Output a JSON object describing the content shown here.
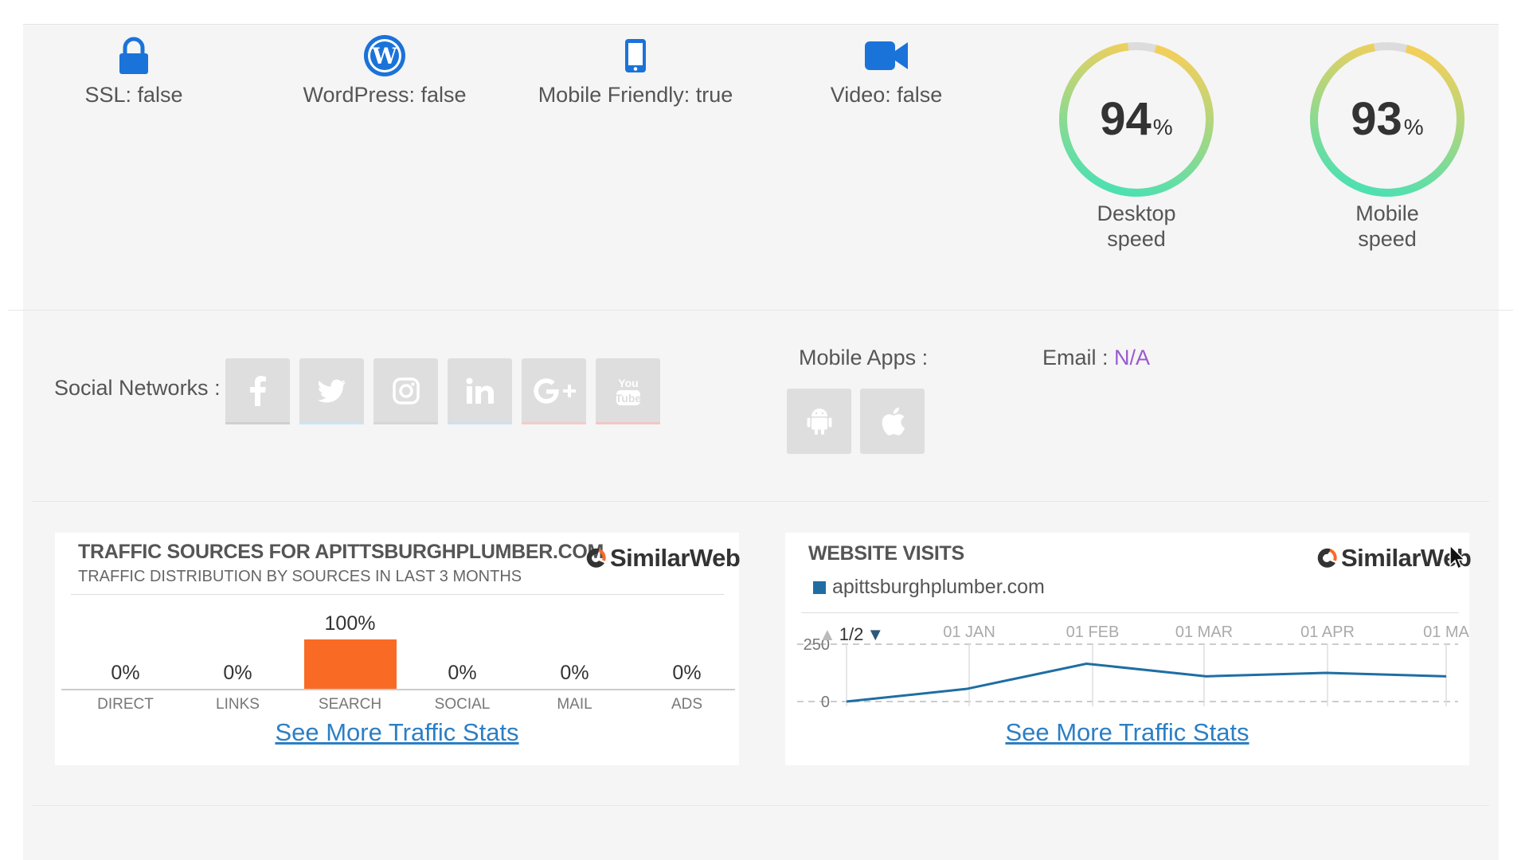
{
  "features": [
    {
      "icon": "lock-icon",
      "label": "SSL: false"
    },
    {
      "icon": "wordpress-icon",
      "label": "WordPress: false"
    },
    {
      "icon": "mobile-phone-icon",
      "label": "Mobile Friendly: true"
    },
    {
      "icon": "video-camera-icon",
      "label": "Video: false"
    }
  ],
  "speeds": [
    {
      "value": "94",
      "unit": "%",
      "caption_line1": "Desktop",
      "caption_line2": "speed",
      "fraction": 0.94
    },
    {
      "value": "93",
      "unit": "%",
      "caption_line1": "Mobile",
      "caption_line2": "speed",
      "fraction": 0.93
    }
  ],
  "social": {
    "label": "Social Networks :",
    "networks": [
      "facebook",
      "twitter",
      "instagram",
      "linkedin",
      "google-plus",
      "youtube"
    ],
    "underline_colors": [
      "#cfcfcf",
      "#cfe3f1",
      "#d6d6d6",
      "#cfe0ee",
      "#f0cccc",
      "#f1c7c7"
    ]
  },
  "apps": {
    "label": "Mobile Apps :",
    "stores": [
      "android",
      "apple"
    ]
  },
  "email": {
    "label": "Email : ",
    "value": "N/A"
  },
  "traffic_sources": {
    "title": "TRAFFIC SOURCES FOR APITTSBURGHPLUMBER.COM",
    "subtitle": "TRAFFIC DISTRIBUTION BY SOURCES IN LAST 3 MONTHS",
    "logo_text": "SimilarWeb",
    "link": "See More Traffic Stats"
  },
  "website_visits": {
    "title": "WEBSITE VISITS",
    "logo_text": "SimilarWeb",
    "legend": "apittsburghplumber.com",
    "pager": "1/2",
    "link": "See More Traffic Stats"
  },
  "chart_data": [
    {
      "type": "bar",
      "categories": [
        "DIRECT",
        "LINKS",
        "SEARCH",
        "SOCIAL",
        "MAIL",
        "ADS"
      ],
      "values": [
        0,
        0,
        100,
        0,
        0,
        0
      ],
      "labels": [
        "0%",
        "0%",
        "100%",
        "0%",
        "0%",
        "0%"
      ],
      "ylim": [
        0,
        100
      ],
      "color": "#f96b25"
    },
    {
      "type": "line",
      "x_ticks": [
        "01 JAN",
        "01 FEB",
        "01 MAR",
        "01 APR",
        "01 MA"
      ],
      "y_ticks": [
        "250",
        "0"
      ],
      "ylim": [
        0,
        250
      ],
      "series": [
        {
          "values": [
            0,
            55,
            165,
            110,
            125,
            110
          ]
        }
      ],
      "color": "#1f6ea3"
    }
  ]
}
